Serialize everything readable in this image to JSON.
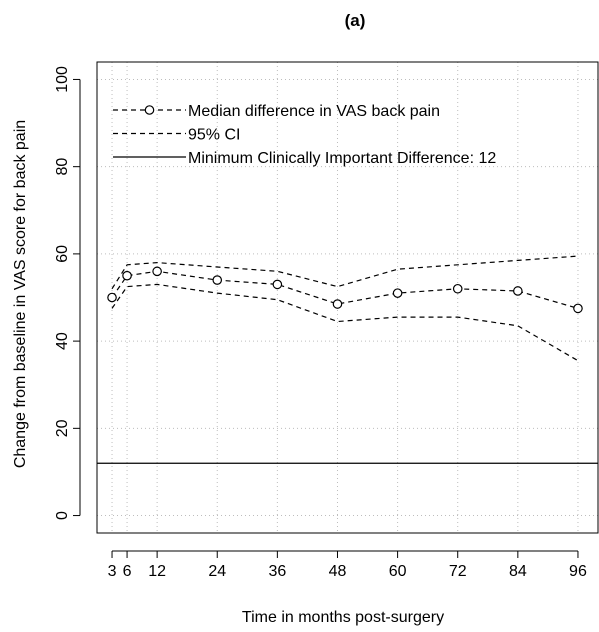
{
  "chart_data": {
    "type": "line",
    "title": "(a)",
    "xlabel": "Time in months post-surgery",
    "ylabel": "Change from baseline in VAS score for back pain",
    "xlim": [
      0,
      100
    ],
    "ylim": [
      -4,
      104
    ],
    "x_ticks": [
      3,
      6,
      12,
      24,
      36,
      48,
      60,
      72,
      84,
      96
    ],
    "y_ticks": [
      0,
      20,
      40,
      60,
      80,
      100
    ],
    "grid": true,
    "grid_style": "dotted",
    "legend_position": "top-left",
    "series": [
      {
        "name": "Median difference in VAS back pain",
        "style": "dashed-with-circles",
        "x": [
          3,
          6,
          12,
          24,
          36,
          48,
          60,
          72,
          84,
          96
        ],
        "y": [
          50,
          55,
          56,
          54,
          53,
          48.5,
          51,
          52,
          51.5,
          47.5
        ]
      },
      {
        "name": "95% CI",
        "style": "dashed",
        "role": "upper",
        "x": [
          3,
          6,
          12,
          24,
          36,
          48,
          60,
          72,
          84,
          96
        ],
        "y": [
          52,
          57.5,
          58,
          57,
          56,
          52.5,
          56.5,
          57.5,
          58.5,
          59.5
        ]
      },
      {
        "name": "95% CI",
        "style": "dashed",
        "role": "lower",
        "x": [
          3,
          6,
          12,
          24,
          36,
          48,
          60,
          72,
          84,
          96
        ],
        "y": [
          47.5,
          52.5,
          53,
          51,
          49.5,
          44.5,
          45.5,
          45.5,
          43.5,
          35.5
        ]
      }
    ],
    "reference_line": {
      "name": "Minimum Clinically Important Difference: 12",
      "y": 12,
      "style": "solid"
    },
    "colors": {
      "lines": "#000000",
      "grid": "#bdbdbd",
      "background": "#ffffff"
    }
  }
}
